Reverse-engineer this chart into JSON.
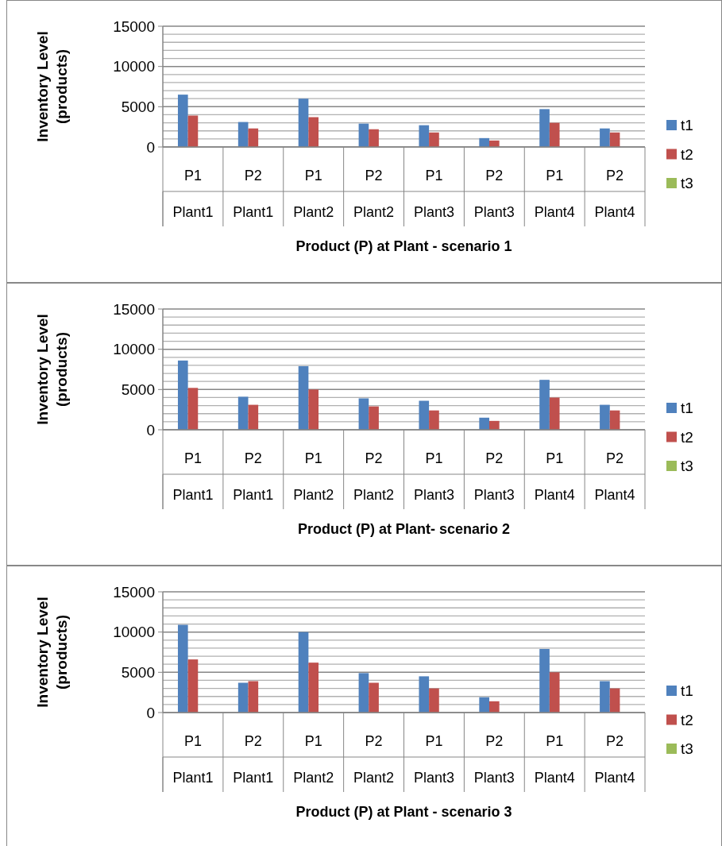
{
  "chart_data": [
    {
      "type": "bar",
      "xlabel": "Product (P) at Plant - scenario 1",
      "ylabel": "Inventory Level\n(products)",
      "categories": [
        "P1\nPlant1",
        "P2\nPlant1",
        "P1\nPlant2",
        "P2\nPlant2",
        "P1\nPlant3",
        "P2\nPlant3",
        "P1\nPlant4",
        "P2\nPlant4"
      ],
      "ylim": [
        0,
        15000
      ],
      "yticks": [
        0,
        {
          "value": 1000,
          "label": null
        },
        {
          "value": 2000,
          "label": null
        },
        {
          "value": 3000,
          "label": null
        },
        {
          "value": 4000,
          "label": null
        },
        5000,
        {
          "value": 6000,
          "label": null
        },
        {
          "value": 7000,
          "label": null
        },
        {
          "value": 8000,
          "label": null
        },
        {
          "value": 9000,
          "label": null
        },
        10000,
        {
          "value": 11000,
          "label": null
        },
        {
          "value": 12000,
          "label": null
        },
        {
          "value": 13000,
          "label": null
        },
        {
          "value": 14000,
          "label": null
        },
        15000
      ],
      "grid": true,
      "legend": "right",
      "series": [
        {
          "name": "t1",
          "color": "#4f81bd",
          "values": [
            6500,
            3100,
            6000,
            2900,
            2700,
            1100,
            4700,
            2300
          ]
        },
        {
          "name": "t2",
          "color": "#c0504d",
          "values": [
            3900,
            2300,
            3700,
            2200,
            1800,
            800,
            3000,
            1800
          ]
        },
        {
          "name": "t3",
          "color": "#9bbb59",
          "values": [
            0,
            0,
            0,
            0,
            0,
            0,
            0,
            0
          ]
        }
      ]
    },
    {
      "type": "bar",
      "xlabel": "Product (P) at Plant- scenario 2",
      "ylabel": "Inventory Level\n(products)",
      "categories": [
        "P1\nPlant1",
        "P2\nPlant1",
        "P1\nPlant2",
        "P2\nPlant2",
        "P1\nPlant3",
        "P2\nPlant3",
        "P1\nPlant4",
        "P2\nPlant4"
      ],
      "ylim": [
        0,
        15000
      ],
      "yticks": [
        0,
        {
          "value": 1000,
          "label": null
        },
        {
          "value": 2000,
          "label": null
        },
        {
          "value": 3000,
          "label": null
        },
        {
          "value": 4000,
          "label": null
        },
        5000,
        {
          "value": 6000,
          "label": null
        },
        {
          "value": 7000,
          "label": null
        },
        {
          "value": 8000,
          "label": null
        },
        {
          "value": 9000,
          "label": null
        },
        10000,
        {
          "value": 11000,
          "label": null
        },
        {
          "value": 12000,
          "label": null
        },
        {
          "value": 13000,
          "label": null
        },
        {
          "value": 14000,
          "label": null
        },
        15000
      ],
      "grid": true,
      "legend": "right",
      "series": [
        {
          "name": "t1",
          "color": "#4f81bd",
          "values": [
            8600,
            4100,
            7900,
            3900,
            3600,
            1500,
            6200,
            3100
          ]
        },
        {
          "name": "t2",
          "color": "#c0504d",
          "values": [
            5200,
            3100,
            5000,
            2900,
            2400,
            1100,
            4000,
            2400
          ]
        },
        {
          "name": "t3",
          "color": "#9bbb59",
          "values": [
            0,
            0,
            0,
            0,
            0,
            0,
            0,
            0
          ]
        }
      ]
    },
    {
      "type": "bar",
      "xlabel": "Product (P) at Plant - scenario 3",
      "ylabel": "Inventory Level\n(products)",
      "categories": [
        "P1\nPlant1",
        "P2\nPlant1",
        "P1\nPlant2",
        "P2\nPlant2",
        "P1\nPlant3",
        "P2\nPlant3",
        "P1\nPlant4",
        "P2\nPlant4"
      ],
      "ylim": [
        0,
        15000
      ],
      "yticks": [
        0,
        {
          "value": 1000,
          "label": null
        },
        {
          "value": 2000,
          "label": null
        },
        {
          "value": 3000,
          "label": null
        },
        {
          "value": 4000,
          "label": null
        },
        5000,
        {
          "value": 6000,
          "label": null
        },
        {
          "value": 7000,
          "label": null
        },
        {
          "value": 8000,
          "label": null
        },
        {
          "value": 9000,
          "label": null
        },
        10000,
        {
          "value": 11000,
          "label": null
        },
        {
          "value": 12000,
          "label": null
        },
        {
          "value": 13000,
          "label": null
        },
        {
          "value": 14000,
          "label": null
        },
        15000
      ],
      "grid": true,
      "legend": "right",
      "series": [
        {
          "name": "t1",
          "color": "#4f81bd",
          "values": [
            10900,
            3700,
            10000,
            4900,
            4500,
            1900,
            7900,
            3900
          ]
        },
        {
          "name": "t2",
          "color": "#c0504d",
          "values": [
            6600,
            3900,
            6200,
            3700,
            3000,
            1400,
            5000,
            3000
          ]
        },
        {
          "name": "t3",
          "color": "#9bbb59",
          "values": [
            0,
            0,
            0,
            0,
            0,
            0,
            0,
            0
          ]
        }
      ]
    }
  ]
}
